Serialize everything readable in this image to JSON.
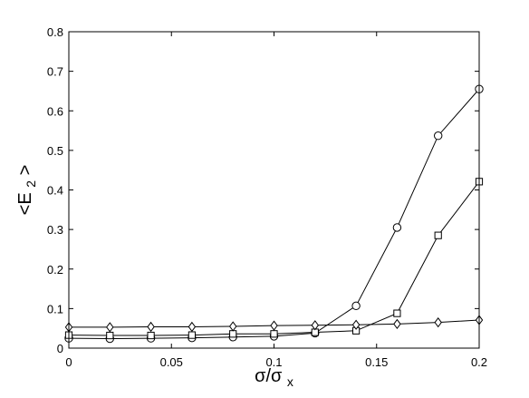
{
  "chart_data": {
    "type": "line",
    "title": "",
    "xlabel": {
      "base": "σ/σ",
      "sub": "x"
    },
    "ylabel": {
      "pre": "<E",
      "sub": "2",
      "post": ">"
    },
    "xlim": [
      0,
      0.2
    ],
    "ylim": [
      0,
      0.8
    ],
    "xticks": [
      0,
      0.05,
      0.1,
      0.15,
      0.2
    ],
    "xtick_labels": [
      "0",
      "0.05",
      "0.1",
      "0.15",
      "0.2"
    ],
    "yticks": [
      0,
      0.1,
      0.2,
      0.3,
      0.4,
      0.5,
      0.6,
      0.7,
      0.8
    ],
    "ytick_labels": [
      "0",
      "0.1",
      "0.2",
      "0.3",
      "0.4",
      "0.5",
      "0.6",
      "0.7",
      "0.8"
    ],
    "grid": false,
    "legend": "none",
    "line_color": "#000000",
    "series": [
      {
        "marker": "circle",
        "x": [
          0,
          0.02,
          0.04,
          0.06,
          0.08,
          0.1,
          0.12,
          0.14,
          0.16,
          0.18,
          0.2
        ],
        "values": [
          0.025,
          0.024,
          0.025,
          0.026,
          0.028,
          0.03,
          0.038,
          0.107,
          0.305,
          0.537,
          0.655
        ]
      },
      {
        "marker": "square",
        "x": [
          0,
          0.02,
          0.04,
          0.06,
          0.08,
          0.1,
          0.12,
          0.14,
          0.16,
          0.18,
          0.2
        ],
        "values": [
          0.033,
          0.032,
          0.032,
          0.033,
          0.036,
          0.036,
          0.04,
          0.044,
          0.088,
          0.285,
          0.421
        ]
      },
      {
        "marker": "diamond",
        "x": [
          0,
          0.02,
          0.04,
          0.06,
          0.08,
          0.1,
          0.12,
          0.14,
          0.16,
          0.18,
          0.2
        ],
        "values": [
          0.053,
          0.053,
          0.054,
          0.054,
          0.055,
          0.057,
          0.058,
          0.059,
          0.061,
          0.065,
          0.071
        ]
      }
    ]
  }
}
